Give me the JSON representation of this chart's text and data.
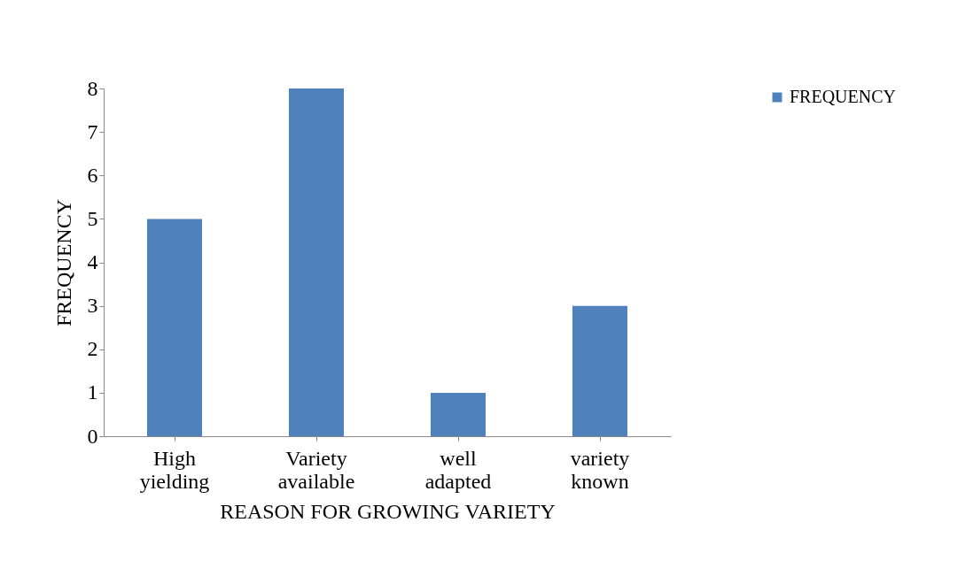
{
  "chart_data": {
    "type": "bar",
    "xlabel": "REASON FOR GROWING VARIETY",
    "ylabel": "FREQUENCY",
    "categories": [
      "High yielding",
      "Variety available",
      "well adapted",
      "variety known"
    ],
    "series": [
      {
        "name": "FREQUENCY",
        "color": "#4f81bd",
        "values": [
          5,
          8,
          1,
          3
        ]
      }
    ],
    "ylim": [
      0,
      8
    ],
    "yticks": [
      0,
      1,
      2,
      3,
      4,
      5,
      6,
      7,
      8
    ],
    "grid": false,
    "legend": "right"
  }
}
